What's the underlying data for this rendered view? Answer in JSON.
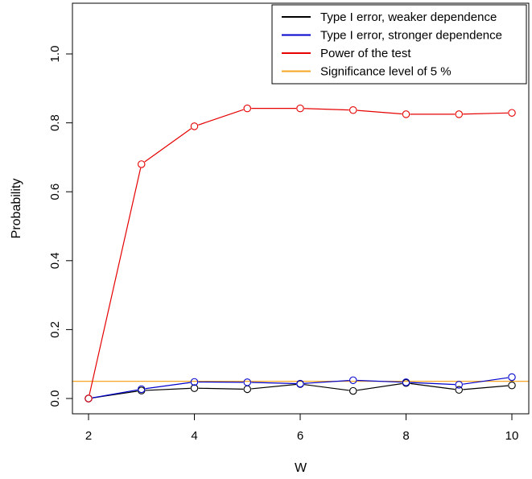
{
  "chart_data": {
    "type": "line",
    "title": "",
    "xlabel": "W",
    "ylabel": "Probability",
    "xlim": [
      2,
      10
    ],
    "ylim": [
      0,
      1.1
    ],
    "x_ticks": [
      2,
      4,
      6,
      8,
      10
    ],
    "x_tick_labels": [
      "2",
      "4",
      "6",
      "8",
      "10"
    ],
    "y_ticks": [
      0.0,
      0.2,
      0.4,
      0.6,
      0.8,
      1.0
    ],
    "y_tick_labels": [
      "0.0",
      "0.2",
      "0.4",
      "0.6",
      "0.8",
      "1.0"
    ],
    "grid": false,
    "legend_position": "top-right",
    "x": [
      2,
      3,
      4,
      5,
      6,
      7,
      8,
      9,
      10
    ],
    "series": [
      {
        "name": "Type I error, weaker dependence",
        "color": "#000000",
        "values": [
          0.0,
          0.023,
          0.03,
          0.027,
          0.042,
          0.022,
          0.045,
          0.025,
          0.038
        ]
      },
      {
        "name": "Type I error, stronger dependence",
        "color": "#0000cc",
        "values": [
          0.0,
          0.027,
          0.048,
          0.047,
          0.043,
          0.053,
          0.047,
          0.04,
          0.062
        ]
      },
      {
        "name": "Power of the test",
        "color": "#e60000",
        "values": [
          0.0,
          0.68,
          0.79,
          0.842,
          0.842,
          0.837,
          0.825,
          0.825,
          0.829
        ]
      }
    ],
    "reference_lines": [
      {
        "name": "Significance level of 5 %",
        "color": "#f5a623",
        "y": 0.05
      }
    ]
  }
}
